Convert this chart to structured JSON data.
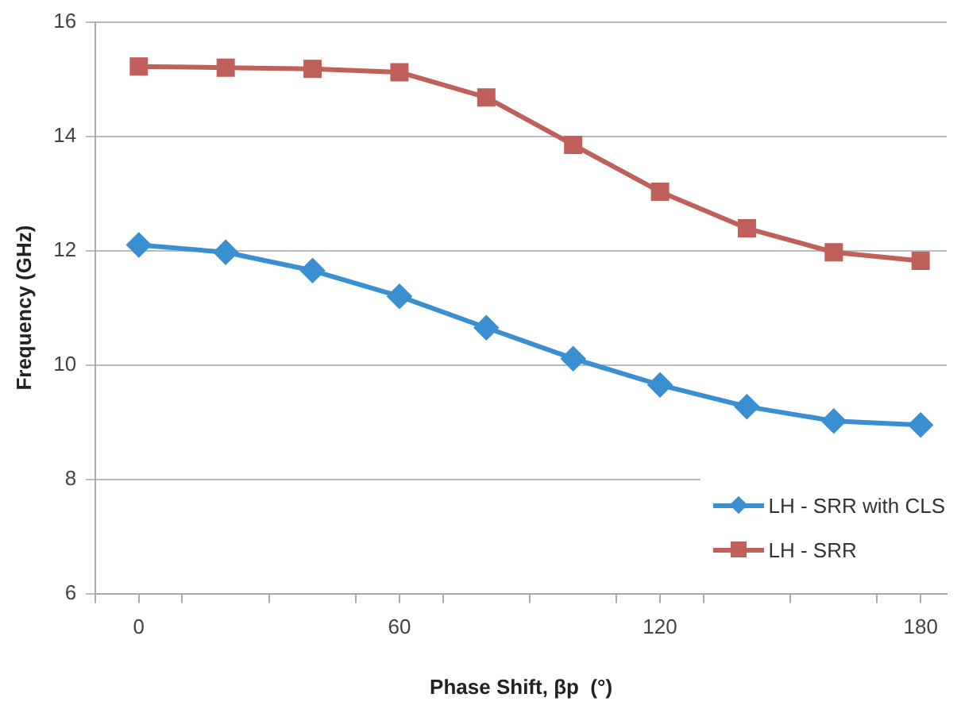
{
  "chart_data": {
    "type": "line",
    "xlabel": "Phase Shift, βp  (°)",
    "ylabel": "Frequency (GHz)",
    "x": [
      0,
      20,
      40,
      60,
      80,
      100,
      120,
      140,
      160,
      180
    ],
    "series": [
      {
        "name": "LH - SRR with CLS",
        "color": "#3a8fd0",
        "marker": "diamond",
        "values": [
          12.1,
          11.97,
          11.65,
          11.2,
          10.65,
          10.11,
          9.65,
          9.27,
          9.02,
          8.95
        ]
      },
      {
        "name": "LH - SRR",
        "color": "#c0605a",
        "marker": "square",
        "values": [
          15.22,
          15.2,
          15.18,
          15.12,
          14.68,
          13.85,
          13.03,
          12.39,
          11.97,
          11.82
        ]
      }
    ],
    "xlim": [
      -10,
      186
    ],
    "xticks": [
      {
        "value": -10,
        "label": null
      },
      {
        "value": 0,
        "label": "0"
      },
      {
        "value": 10,
        "label": null
      },
      {
        "value": 30,
        "label": null
      },
      {
        "value": 50,
        "label": null
      },
      {
        "value": 60,
        "label": "60"
      },
      {
        "value": 70,
        "label": null
      },
      {
        "value": 90,
        "label": null
      },
      {
        "value": 110,
        "label": null
      },
      {
        "value": 120,
        "label": "120"
      },
      {
        "value": 130,
        "label": null
      },
      {
        "value": 150,
        "label": null
      },
      {
        "value": 170,
        "label": null
      },
      {
        "value": 180,
        "label": "180"
      }
    ],
    "ylim": [
      6,
      16
    ],
    "yticks": [
      6,
      8,
      10,
      12,
      14,
      16
    ],
    "grid": "y",
    "legend": "bottom right"
  }
}
